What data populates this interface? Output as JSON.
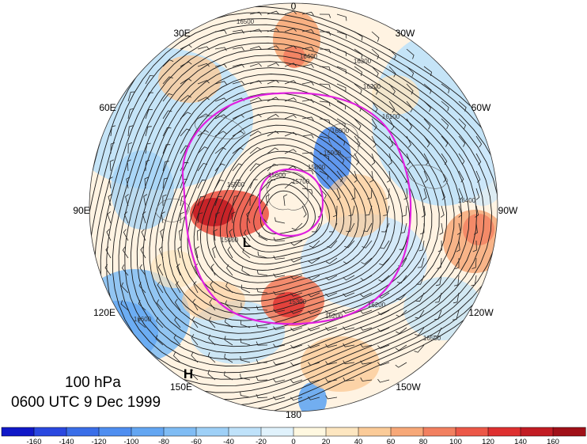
{
  "map": {
    "title": "100 hPa",
    "subtitle": "0600 UTC 9 Dec 1999",
    "projection": "north-polar-stereographic",
    "longitude_labels": [
      "0",
      "30W",
      "60W",
      "90W",
      "120W",
      "150W",
      "180",
      "150E",
      "120E",
      "90E",
      "60E",
      "30E"
    ],
    "contour_labels": [
      "16500",
      "16400",
      "16300",
      "16200",
      "16100",
      "16000",
      "15900",
      "15800",
      "15700",
      "15600",
      "15500",
      "15400",
      "15300",
      "15200",
      "16200",
      "16400",
      "16500",
      "16600"
    ],
    "pressure_centers": [
      {
        "label": "L",
        "name": "low-center"
      },
      {
        "label": "H",
        "name": "high-center"
      }
    ],
    "colors": {
      "highlight_contour": "#e020e0",
      "contour": "#1a1a1a",
      "coast": "#555555"
    }
  },
  "colorbar": {
    "tick_labels": [
      "-160",
      "-140",
      "-120",
      "-100",
      "-80",
      "-60",
      "-40",
      "-20",
      "0",
      "20",
      "40",
      "60",
      "80",
      "100",
      "120",
      "140",
      "160"
    ],
    "colors": [
      "#1018c8",
      "#2a48e0",
      "#3a6ee8",
      "#4f8ef0",
      "#63a6f2",
      "#7fbcf4",
      "#9ed0f7",
      "#bfe2fa",
      "#e0f2fc",
      "#fff8e0",
      "#fde6c0",
      "#fbcb98",
      "#f7a878",
      "#f28060",
      "#ec5848",
      "#de3030",
      "#c21c24",
      "#a01018"
    ]
  }
}
